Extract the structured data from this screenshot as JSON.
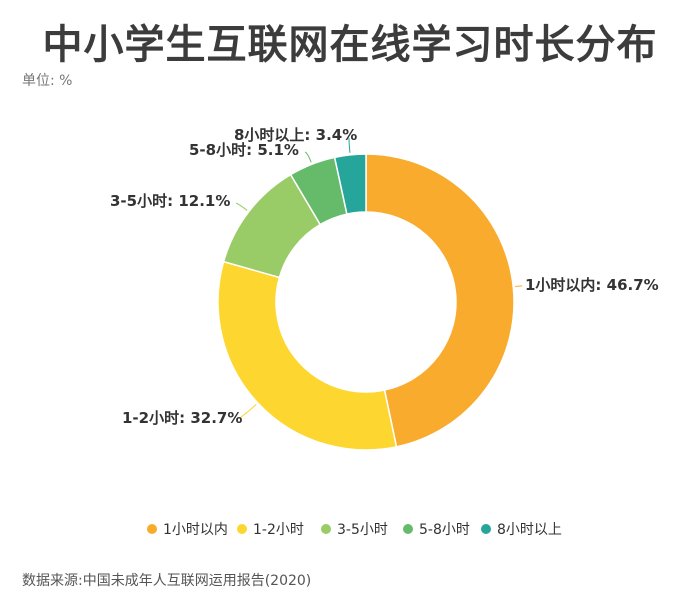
{
  "title": "中小学生互联网在线学习时长分布",
  "unit_label": "单位: %",
  "source": "数据来源:中国未成年人互联网运用报告(2020)",
  "chart_data": {
    "type": "pie",
    "donut": true,
    "categories": [
      "1小时以内",
      "1-2小时",
      "3-5小时",
      "5-8小时",
      "8小时以上"
    ],
    "values": [
      46.7,
      32.7,
      12.1,
      5.1,
      3.4
    ],
    "data_labels": [
      "1小时以内: 46.7%",
      "1-2小时: 32.7%",
      "3-5小时: 12.1%",
      "5-8小时: 5.1%",
      "8小时以上: 3.4%"
    ],
    "colors": [
      "#f8ab2c",
      "#fed630",
      "#99cc66",
      "#66bb6a",
      "#26a69a"
    ],
    "legend_position": "bottom"
  }
}
